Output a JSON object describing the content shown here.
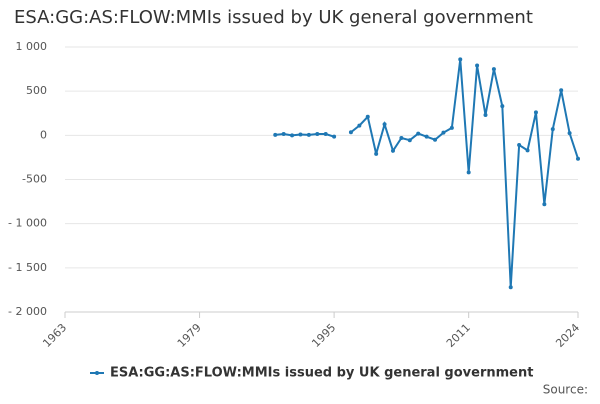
{
  "chart_data": {
    "type": "line",
    "title": "ESA:GG:AS:FLOW:MMIs issued by UK general government",
    "x": [
      1988,
      1989,
      1990,
      1991,
      1992,
      1993,
      1994,
      1995,
      1996,
      1997,
      1998,
      1999,
      2000,
      2001,
      2002,
      2003,
      2004,
      2005,
      2006,
      2007,
      2008,
      2009,
      2010,
      2011,
      2012,
      2013,
      2014,
      2015,
      2016,
      2017,
      2018,
      2019,
      2020,
      2021,
      2022,
      2023,
      2024
    ],
    "series": [
      {
        "name": "ESA:GG:AS:FLOW:MMIs issued by UK general government",
        "color": "#1f78b4",
        "values": [
          5,
          15,
          0,
          10,
          5,
          15,
          15,
          -15,
          null,
          35,
          110,
          210,
          -210,
          125,
          -175,
          -30,
          -55,
          20,
          -15,
          -50,
          30,
          85,
          860,
          -420,
          790,
          230,
          750,
          330,
          -1720,
          -110,
          -170,
          260,
          -780,
          70,
          510,
          25,
          -265
        ]
      }
    ],
    "xlim": [
      1963,
      2024
    ],
    "xticks": [
      1963,
      1979,
      1995,
      2011,
      2024
    ],
    "ylim": [
      -2000,
      1000
    ],
    "yticks": [
      {
        "value": -2000,
        "label": "- 2 000"
      },
      {
        "value": -1500,
        "label": "- 1 500"
      },
      {
        "value": -1000,
        "label": "- 1 000"
      },
      -500,
      0,
      500,
      {
        "value": 1000,
        "label": "1 000"
      }
    ],
    "grid": true,
    "source_label": "Source:"
  }
}
